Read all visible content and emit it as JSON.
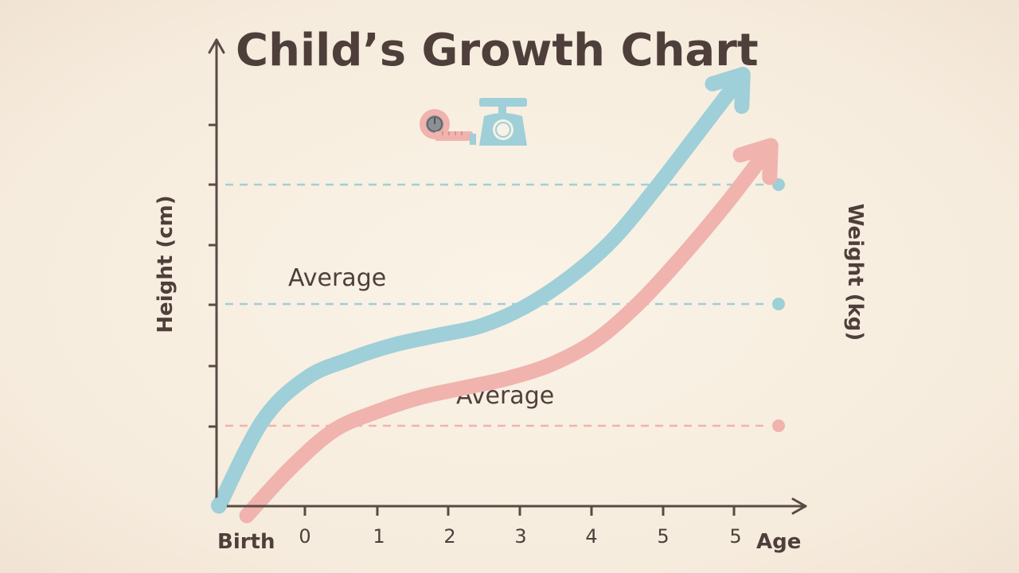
{
  "chart_data": {
    "type": "line",
    "title": "Child’s Growth Chart",
    "xlabel": "Age",
    "ylabel_left": "Height (cm)",
    "ylabel_right": "Weight (kg)",
    "origin_label": "Birth",
    "x_tick_labels": [
      "0",
      "1",
      "2",
      "3",
      "4",
      "5",
      "5"
    ],
    "x": [
      0,
      0.5,
      1,
      1.5,
      2,
      2.5,
      3,
      3.5,
      4,
      4.5,
      5,
      5.5,
      6
    ],
    "xlim": [
      0,
      6.7
    ],
    "ylim": [
      0,
      10
    ],
    "series": [
      {
        "name": "Height",
        "color": "#9fcfd8",
        "values": [
          0,
          1.8,
          2.7,
          3.1,
          3.4,
          3.6,
          3.8,
          4.2,
          4.8,
          5.6,
          6.7,
          7.9,
          9.1
        ]
      },
      {
        "name": "Weight",
        "color": "#f0b3ae",
        "values": [
          -0.2,
          0.8,
          1.6,
          2.0,
          2.3,
          2.5,
          2.7,
          3.0,
          3.5,
          4.3,
          5.3,
          6.4,
          7.6
        ]
      }
    ],
    "reference_lines": [
      {
        "name": "upper",
        "value": 6.7,
        "color": "#9fcfd8"
      },
      {
        "name": "average-blue",
        "value": 4.3,
        "color": "#9fcfd8"
      },
      {
        "name": "average-pink",
        "value": 1.7,
        "color": "#f0b3ae"
      }
    ],
    "annotations": [
      "Average",
      "Average"
    ]
  }
}
